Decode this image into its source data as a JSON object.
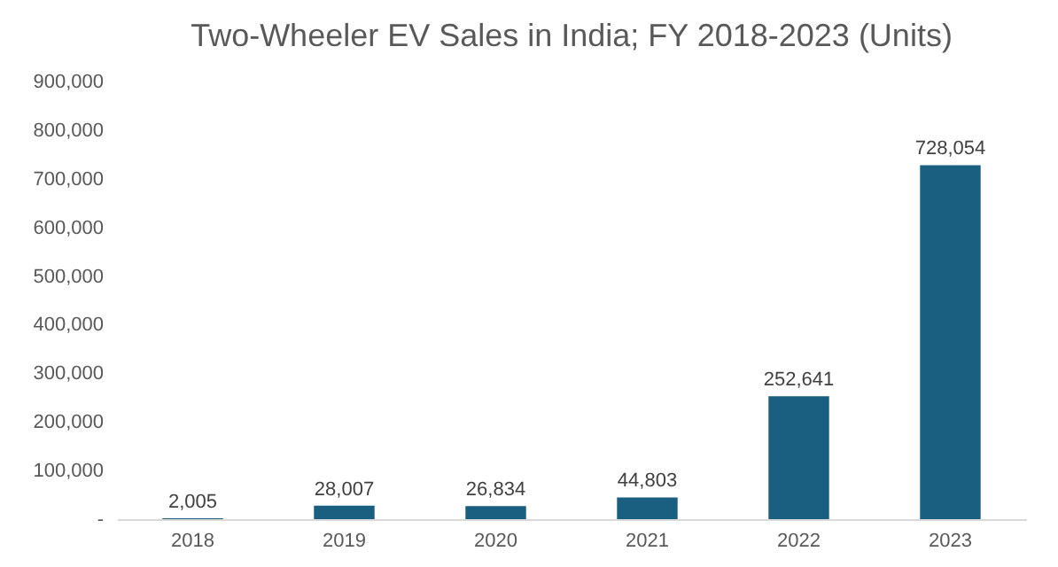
{
  "chart_data": {
    "type": "bar",
    "title": "Two-Wheeler EV Sales in India; FY 2018-2023 (Units)",
    "categories": [
      "2018",
      "2019",
      "2020",
      "2021",
      "2022",
      "2023"
    ],
    "values": [
      2005,
      28007,
      26834,
      44803,
      252641,
      728054
    ],
    "color": "#1a5f80",
    "ylim": [
      0,
      900000
    ],
    "yticks": [
      {
        "value": 0,
        "label": "-"
      },
      {
        "value": 100000,
        "label": "100,000"
      },
      {
        "value": 200000,
        "label": "200,000"
      },
      {
        "value": 300000,
        "label": "300,000"
      },
      {
        "value": 400000,
        "label": "400,000"
      },
      {
        "value": 500000,
        "label": "500,000"
      },
      {
        "value": 600000,
        "label": "600,000"
      },
      {
        "value": 700000,
        "label": "700,000"
      },
      {
        "value": 800000,
        "label": "800,000"
      },
      {
        "value": 900000,
        "label": "900,000"
      }
    ],
    "grid": false,
    "value_labels": [
      "2,005",
      "28,007",
      "26,834",
      "44,803",
      "252,641",
      "728,054"
    ]
  }
}
